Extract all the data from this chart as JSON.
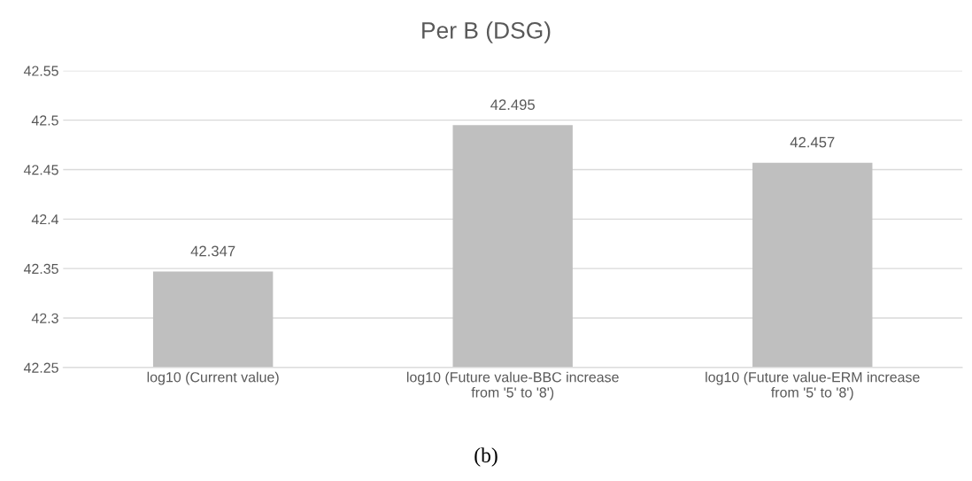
{
  "chart_data": {
    "type": "bar",
    "title": "Per B (DSG)",
    "categories": [
      "log10 (Current value)",
      "log10 (Future value-BBC increase\nfrom '5' to '8')",
      "log10 (Future value-ERM increase\nfrom '5' to '8')"
    ],
    "values": [
      42.347,
      42.495,
      42.457
    ],
    "color": "#bfbfbf",
    "ylim": [
      42.25,
      42.55
    ],
    "yticks": [
      42.25,
      42.3,
      42.35,
      42.4,
      42.45,
      42.5,
      42.55
    ],
    "grid": "y",
    "data_labels": true,
    "legend": false,
    "annotations": [
      "(b)"
    ]
  }
}
